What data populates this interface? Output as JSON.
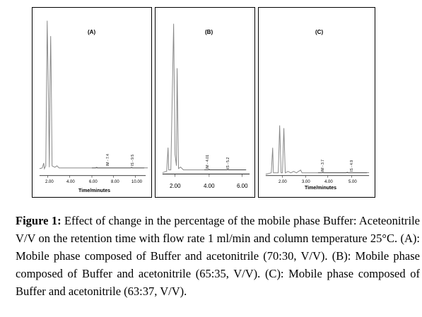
{
  "panels": [
    {
      "label": "(A)",
      "x_title": "Time/minutes",
      "ticks": [
        "2.00",
        "4.00",
        "6.00",
        "8.00",
        "10.00"
      ],
      "peak_labels": [
        "IM - 7.4",
        "IS - 9.5"
      ],
      "trace": {
        "color": "#888888"
      }
    },
    {
      "label": "(B)",
      "x_title": "",
      "ticks": [
        "2.00",
        "4.00",
        "6.00"
      ],
      "peak_labels": [
        "IM - 4.01",
        "IS - 5.2"
      ],
      "trace": {
        "color": "#888888"
      }
    },
    {
      "label": "(C)",
      "x_title": "Time/minutes",
      "ticks": [
        "2.00",
        "3.00",
        "4.00",
        "5.00"
      ],
      "peak_labels": [
        "IM - 3.7",
        "IS - 4.9"
      ],
      "trace": {
        "color": "#888888"
      }
    }
  ],
  "caption": {
    "figure_label": "Figure 1:",
    "text": " Effect of change in the percentage of the mobile phase Buffer: Aceteonitrile V/V on the retention time with flow rate 1 ml/min and column temperature 25°C. (A): Mobile phase composed of Buffer and acetonitrile (70:30, V/V). (B): Mobile phase composed of Buffer and acetonitrile (65:35, V/V). (C): Mobile phase composed of Buffer and acetonitrile (63:37, V/V)."
  }
}
